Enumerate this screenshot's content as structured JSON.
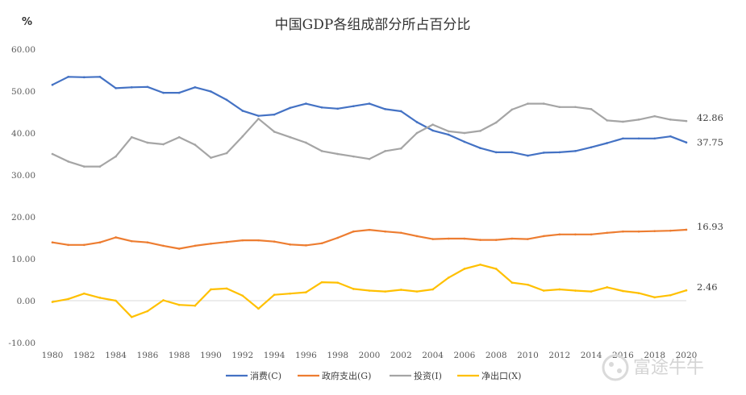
{
  "watermark": "富途牛牛",
  "chart_data": {
    "type": "line",
    "title": "中国GDP各组成部分所占百分比",
    "ylabel": "%",
    "xlabel": "",
    "ylim": [
      -10,
      60
    ],
    "yticks": [
      "-10.00",
      "0.00",
      "10.00",
      "20.00",
      "30.00",
      "40.00",
      "50.00",
      "60.00"
    ],
    "xticks": [
      "1980",
      "1982",
      "1984",
      "1986",
      "1988",
      "1990",
      "1992",
      "1994",
      "1996",
      "1998",
      "2000",
      "2002",
      "2004",
      "2006",
      "2008",
      "2010",
      "2012",
      "2014",
      "2016",
      "2018",
      "2020"
    ],
    "x": [
      1980,
      1981,
      1982,
      1983,
      1984,
      1985,
      1986,
      1987,
      1988,
      1989,
      1990,
      1991,
      1992,
      1993,
      1994,
      1995,
      1996,
      1997,
      1998,
      1999,
      2000,
      2001,
      2002,
      2003,
      2004,
      2005,
      2006,
      2007,
      2008,
      2009,
      2010,
      2011,
      2012,
      2013,
      2014,
      2015,
      2016,
      2017,
      2018,
      2019,
      2020
    ],
    "grid": false,
    "legend_position": "bottom",
    "series": [
      {
        "name": "消费(C)",
        "color": "#4472c4",
        "end_label": "37.75",
        "values": [
          51.5,
          53.4,
          53.3,
          53.4,
          50.7,
          50.9,
          51.0,
          49.6,
          49.6,
          50.9,
          49.9,
          47.9,
          45.3,
          44.1,
          44.4,
          46.0,
          47.0,
          46.1,
          45.8,
          46.4,
          47.0,
          45.7,
          45.2,
          42.6,
          40.6,
          39.6,
          37.9,
          36.4,
          35.4,
          35.4,
          34.6,
          35.3,
          35.4,
          35.7,
          36.6,
          37.6,
          38.7,
          38.7,
          38.7,
          39.2,
          37.75
        ]
      },
      {
        "name": "政府支出(G)",
        "color": "#ed7d31",
        "end_label": "16.93",
        "values": [
          13.9,
          13.3,
          13.3,
          13.9,
          15.1,
          14.2,
          13.9,
          13.1,
          12.4,
          13.1,
          13.6,
          14.0,
          14.4,
          14.4,
          14.1,
          13.4,
          13.2,
          13.7,
          15.0,
          16.5,
          16.9,
          16.5,
          16.2,
          15.4,
          14.7,
          14.8,
          14.8,
          14.5,
          14.5,
          14.8,
          14.7,
          15.4,
          15.8,
          15.8,
          15.8,
          16.2,
          16.5,
          16.5,
          16.6,
          16.7,
          16.93
        ]
      },
      {
        "name": "投资(I)",
        "color": "#a5a5a5",
        "end_label": "42.86",
        "values": [
          35.0,
          33.2,
          32.0,
          32.0,
          34.4,
          39.0,
          37.7,
          37.3,
          39.0,
          37.2,
          34.1,
          35.2,
          39.2,
          43.4,
          40.3,
          39.0,
          37.7,
          35.7,
          35.0,
          34.4,
          33.8,
          35.7,
          36.3,
          40.0,
          42.0,
          40.4,
          40.0,
          40.5,
          42.5,
          45.6,
          47.0,
          47.0,
          46.2,
          46.2,
          45.7,
          43.0,
          42.7,
          43.2,
          44.0,
          43.2,
          42.86
        ]
      },
      {
        "name": "净出口(X)",
        "color": "#ffc000",
        "end_label": "2.46",
        "values": [
          -0.3,
          0.4,
          1.7,
          0.7,
          0.0,
          -3.9,
          -2.5,
          0.1,
          -1.0,
          -1.2,
          2.7,
          2.9,
          1.2,
          -1.9,
          1.4,
          1.7,
          2.0,
          4.4,
          4.3,
          2.8,
          2.4,
          2.2,
          2.6,
          2.2,
          2.7,
          5.5,
          7.6,
          8.6,
          7.6,
          4.3,
          3.8,
          2.4,
          2.7,
          2.4,
          2.2,
          3.2,
          2.3,
          1.8,
          0.8,
          1.3,
          2.46
        ]
      }
    ]
  }
}
